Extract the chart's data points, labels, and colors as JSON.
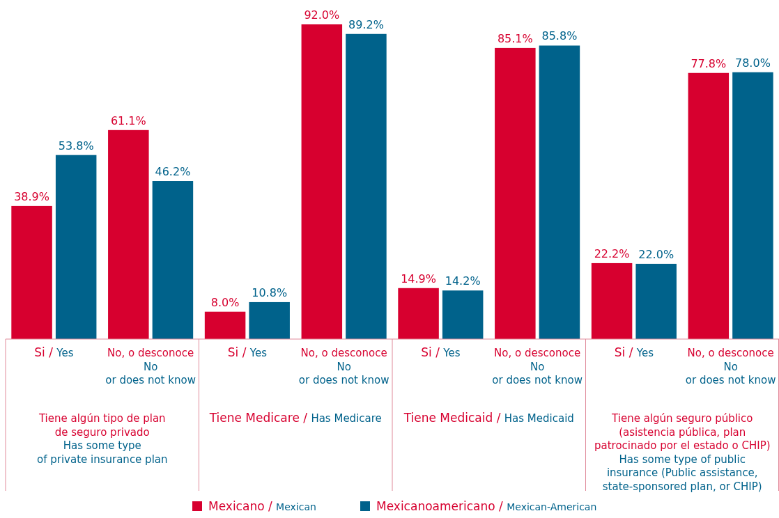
{
  "chart_data": {
    "type": "bar",
    "categories": [
      "Si / Yes",
      "No, o desconoce\nNo\nor does not know",
      "Si / Yes",
      "No, o desconoce\nNo\nor does not know",
      "Si / Yes",
      "No, o desconoce\nNo\nor does not know",
      "Si / Yes",
      "No, o desconoce\nNo\nor does not know"
    ],
    "series": [
      {
        "name": "Mexicano / Mexican",
        "color": "#d7002f",
        "values": [
          38.9,
          61.1,
          8.0,
          92.0,
          14.9,
          85.1,
          22.2,
          77.8
        ],
        "value_labels": [
          "38.9%",
          "61.1%",
          "8.0%",
          "92.0%",
          "14.9%",
          "85.1%",
          "22.2%",
          "77.8%"
        ]
      },
      {
        "name": "Mexicanoamericano / Mexican-American",
        "color": "#00628b",
        "values": [
          53.8,
          46.2,
          10.8,
          89.2,
          14.2,
          85.8,
          22.0,
          78.0
        ],
        "value_labels": [
          "53.8%",
          "46.2%",
          "10.8%",
          "89.2%",
          "14.2%",
          "85.8%",
          "22.0%",
          "78.0%"
        ]
      }
    ],
    "annotations": [
      "Tiene algún tipo de plan\nde seguro privado\nHas some type\nof private insurance plan",
      "Tiene Medicare / Has Medicare",
      "Tiene Medicaid / Has Medicaid",
      "Tiene algún seguro público\n(asistencia pública, plan\npatrocinado por el estado o CHIP)\nHas some type of public\ninsurance (Public assistance,\nstate-sponsored plan, or CHIP)"
    ],
    "legend": "bottom"
  }
}
